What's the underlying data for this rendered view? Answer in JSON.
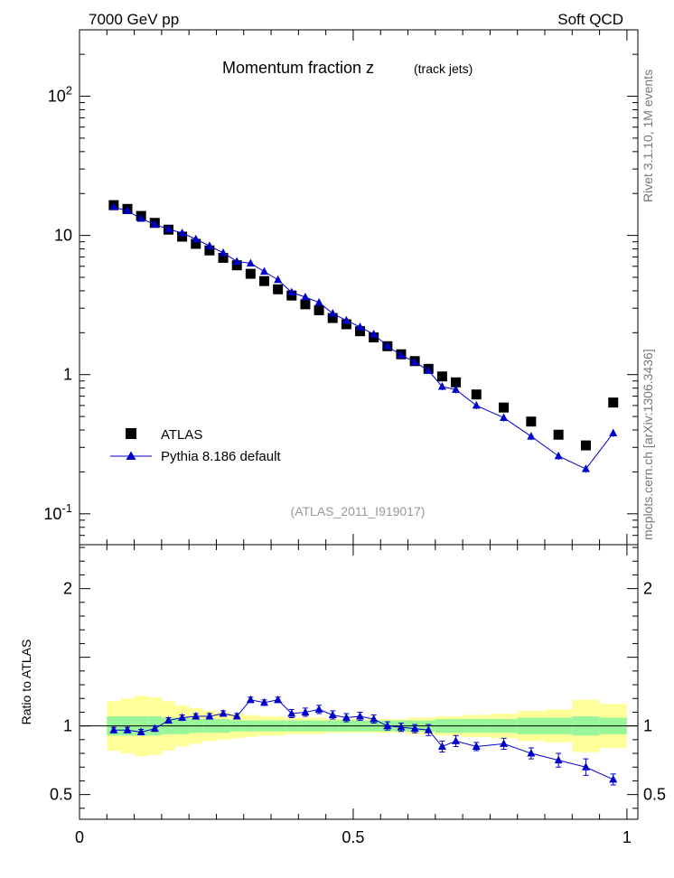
{
  "header": {
    "left": "7000 GeV pp",
    "right": "Soft QCD"
  },
  "side_labels": {
    "rivet": "Rivet 3.1.10, 1M events",
    "mcplots": "mcplots.cern.ch [arXiv:1306.3436]"
  },
  "chart_data": {
    "type": "scatter",
    "title": "Momentum fraction z",
    "subtitle": "(track jets)",
    "analysis_label": "(ATLAS_2011_I919017)",
    "main": {
      "yscale": "log",
      "ylim": [
        0.06,
        300
      ],
      "xlim": [
        0,
        1.02
      ],
      "ytick_labels": [
        "10^-1",
        "1",
        "10",
        "10^2"
      ],
      "legend_position": "lower-left",
      "series": [
        {
          "name": "ATLAS",
          "marker": "square",
          "color": "#000000",
          "x": [
            0.0625,
            0.0875,
            0.1125,
            0.1375,
            0.1625,
            0.1875,
            0.2125,
            0.2375,
            0.2625,
            0.2875,
            0.3125,
            0.3375,
            0.3625,
            0.3875,
            0.4125,
            0.4375,
            0.4625,
            0.4875,
            0.5125,
            0.5375,
            0.5625,
            0.5875,
            0.6125,
            0.6375,
            0.6625,
            0.6875,
            0.725,
            0.775,
            0.825,
            0.875,
            0.925,
            0.975
          ],
          "y": [
            16.5,
            15.5,
            13.8,
            12.3,
            11.0,
            9.8,
            8.7,
            7.8,
            6.9,
            6.1,
            5.3,
            4.7,
            4.1,
            3.7,
            3.2,
            2.9,
            2.55,
            2.3,
            2.05,
            1.85,
            1.6,
            1.4,
            1.25,
            1.1,
            0.97,
            0.88,
            0.72,
            0.58,
            0.46,
            0.37,
            0.31,
            0.63
          ]
        },
        {
          "name": "Pythia 8.186 default",
          "marker": "triangle",
          "color": "#0000cc",
          "x": [
            0.0625,
            0.0875,
            0.1125,
            0.1375,
            0.1625,
            0.1875,
            0.2125,
            0.2375,
            0.2625,
            0.2875,
            0.3125,
            0.3375,
            0.3625,
            0.3875,
            0.4125,
            0.4375,
            0.4625,
            0.4875,
            0.5125,
            0.5375,
            0.5625,
            0.5875,
            0.6125,
            0.6375,
            0.6625,
            0.6875,
            0.725,
            0.775,
            0.825,
            0.875,
            0.925,
            0.975
          ],
          "y": [
            16.0,
            15.0,
            13.2,
            12.0,
            11.1,
            10.4,
            9.4,
            8.4,
            7.5,
            6.5,
            6.3,
            5.5,
            4.8,
            3.9,
            3.6,
            3.3,
            2.75,
            2.45,
            2.2,
            1.95,
            1.6,
            1.38,
            1.23,
            1.07,
            0.82,
            0.78,
            0.6,
            0.49,
            0.36,
            0.26,
            0.21,
            0.38
          ]
        }
      ]
    },
    "ratio": {
      "ylabel": "Ratio to ATLAS",
      "ylim": [
        0.32,
        2.32
      ],
      "yticks": [
        0.5,
        1,
        2
      ],
      "ytick_labels": [
        "0.5",
        "1",
        "2"
      ],
      "xticks": [
        0,
        0.5,
        1
      ],
      "xtick_labels": [
        "0",
        "0.5",
        "1"
      ],
      "bins": [
        [
          0.05,
          0.075
        ],
        [
          0.075,
          0.1
        ],
        [
          0.1,
          0.125
        ],
        [
          0.125,
          0.15
        ],
        [
          0.15,
          0.175
        ],
        [
          0.175,
          0.2
        ],
        [
          0.2,
          0.225
        ],
        [
          0.225,
          0.25
        ],
        [
          0.25,
          0.275
        ],
        [
          0.275,
          0.3
        ],
        [
          0.3,
          0.325
        ],
        [
          0.325,
          0.35
        ],
        [
          0.35,
          0.375
        ],
        [
          0.375,
          0.4
        ],
        [
          0.4,
          0.425
        ],
        [
          0.425,
          0.45
        ],
        [
          0.45,
          0.475
        ],
        [
          0.475,
          0.5
        ],
        [
          0.5,
          0.525
        ],
        [
          0.525,
          0.55
        ],
        [
          0.55,
          0.575
        ],
        [
          0.575,
          0.6
        ],
        [
          0.6,
          0.625
        ],
        [
          0.625,
          0.65
        ],
        [
          0.65,
          0.675
        ],
        [
          0.675,
          0.7
        ],
        [
          0.7,
          0.75
        ],
        [
          0.75,
          0.8
        ],
        [
          0.8,
          0.85
        ],
        [
          0.85,
          0.9
        ],
        [
          0.9,
          0.95
        ],
        [
          0.95,
          1.0
        ]
      ],
      "band_stat": [
        0.07,
        0.07,
        0.07,
        0.07,
        0.06,
        0.06,
        0.05,
        0.05,
        0.05,
        0.04,
        0.04,
        0.04,
        0.04,
        0.04,
        0.04,
        0.04,
        0.04,
        0.04,
        0.04,
        0.04,
        0.04,
        0.04,
        0.04,
        0.04,
        0.05,
        0.05,
        0.05,
        0.05,
        0.06,
        0.06,
        0.07,
        0.06
      ],
      "band_total": [
        0.18,
        0.2,
        0.22,
        0.21,
        0.18,
        0.15,
        0.13,
        0.11,
        0.1,
        0.09,
        0.08,
        0.07,
        0.07,
        0.06,
        0.06,
        0.06,
        0.05,
        0.05,
        0.05,
        0.05,
        0.05,
        0.05,
        0.06,
        0.06,
        0.07,
        0.07,
        0.08,
        0.09,
        0.11,
        0.12,
        0.19,
        0.16
      ],
      "series": {
        "name": "Pythia 8.186 default",
        "color": "#0000cc",
        "values": [
          0.97,
          0.97,
          0.955,
          0.98,
          1.04,
          1.06,
          1.07,
          1.07,
          1.09,
          1.07,
          1.19,
          1.17,
          1.19,
          1.09,
          1.1,
          1.12,
          1.08,
          1.06,
          1.07,
          1.05,
          1.0,
          0.99,
          0.98,
          0.97,
          0.85,
          0.89,
          0.85,
          0.87,
          0.8,
          0.75,
          0.7,
          0.61
        ],
        "errors": [
          0.02,
          0.02,
          0.02,
          0.02,
          0.02,
          0.02,
          0.02,
          0.02,
          0.02,
          0.02,
          0.02,
          0.02,
          0.02,
          0.03,
          0.03,
          0.03,
          0.03,
          0.03,
          0.03,
          0.03,
          0.03,
          0.03,
          0.03,
          0.04,
          0.04,
          0.04,
          0.03,
          0.04,
          0.04,
          0.05,
          0.06,
          0.04
        ]
      }
    }
  }
}
